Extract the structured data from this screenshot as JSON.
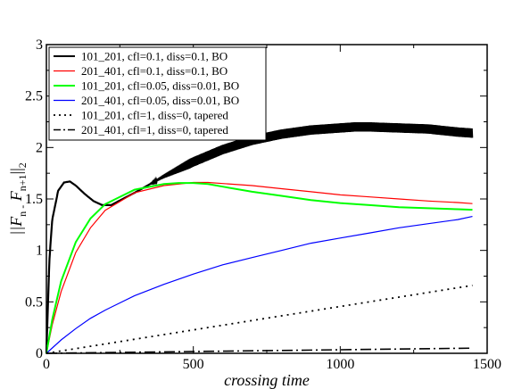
{
  "chart_data": {
    "type": "line",
    "xlabel": "crossing time",
    "ylabel": {
      "base": "||F",
      "sub1": "n -",
      "mid": " F",
      "sub2": "n+1",
      "tail": "||",
      "sub3": "2"
    },
    "xlim": [
      0,
      1500
    ],
    "ylim": [
      0,
      3
    ],
    "xticks": [
      "0",
      "500",
      "1000",
      "1500"
    ],
    "yticks": [
      "0",
      "0.5",
      "1",
      "1.5",
      "2",
      "2.5",
      "3"
    ],
    "grid": false,
    "legend_position": "top-left",
    "series": [
      {
        "name": "101_201, cfl=0.1, diss=0.1, BO",
        "color": "#000000",
        "dash": "solid",
        "width": 2.2,
        "oscillating": true,
        "x": [
          0,
          10,
          20,
          40,
          60,
          80,
          100,
          130,
          160,
          190,
          220,
          260,
          300,
          400,
          500,
          600,
          700,
          800,
          900,
          1000,
          1050,
          1100,
          1200,
          1300,
          1400,
          1450
        ],
        "y": [
          0,
          0.9,
          1.3,
          1.58,
          1.66,
          1.67,
          1.63,
          1.55,
          1.48,
          1.44,
          1.44,
          1.5,
          1.56,
          1.72,
          1.86,
          1.98,
          2.07,
          2.13,
          2.17,
          2.19,
          2.2,
          2.2,
          2.19,
          2.18,
          2.15,
          2.14
        ]
      },
      {
        "name": "201_401, cfl=0.1, diss=0.1, BO",
        "color": "#ff0000",
        "dash": "solid",
        "width": 1.2,
        "oscillating": false,
        "x": [
          0,
          20,
          50,
          100,
          150,
          200,
          300,
          400,
          500,
          550,
          600,
          700,
          800,
          900,
          1000,
          1100,
          1200,
          1300,
          1400,
          1450
        ],
        "y": [
          0,
          0.28,
          0.6,
          0.98,
          1.22,
          1.39,
          1.56,
          1.63,
          1.66,
          1.66,
          1.65,
          1.63,
          1.6,
          1.57,
          1.54,
          1.52,
          1.5,
          1.48,
          1.465,
          1.455
        ]
      },
      {
        "name": "101_201, cfl=0.05, diss=0.01, BO",
        "color": "#00ff00",
        "dash": "solid",
        "width": 2.0,
        "oscillating": false,
        "x": [
          0,
          20,
          50,
          100,
          150,
          200,
          300,
          400,
          450,
          500,
          550,
          600,
          700,
          800,
          900,
          1000,
          1100,
          1200,
          1300,
          1400,
          1450
        ],
        "y": [
          0,
          0.33,
          0.7,
          1.08,
          1.31,
          1.45,
          1.59,
          1.645,
          1.655,
          1.655,
          1.645,
          1.62,
          1.57,
          1.53,
          1.49,
          1.46,
          1.44,
          1.42,
          1.41,
          1.4,
          1.395
        ]
      },
      {
        "name": "201_401, cfl=0.05, diss=0.01, BO",
        "color": "#0000ff",
        "dash": "solid",
        "width": 1.2,
        "oscillating": false,
        "x": [
          0,
          50,
          100,
          150,
          200,
          300,
          400,
          500,
          600,
          700,
          800,
          900,
          1000,
          1100,
          1200,
          1300,
          1400,
          1450
        ],
        "y": [
          0,
          0.13,
          0.24,
          0.34,
          0.42,
          0.56,
          0.67,
          0.77,
          0.86,
          0.93,
          1.0,
          1.07,
          1.12,
          1.17,
          1.22,
          1.26,
          1.3,
          1.33
        ]
      },
      {
        "name": "101_201, cfl=1, diss=0, tapered",
        "color": "#000000",
        "dash": "dotted",
        "width": 1.8,
        "oscillating": false,
        "x": [
          0,
          1450
        ],
        "y": [
          0,
          0.66
        ]
      },
      {
        "name": "201_401, cfl=1, diss=0, tapered",
        "color": "#000000",
        "dash": "dashdot",
        "width": 1.6,
        "oscillating": false,
        "x": [
          0,
          1450
        ],
        "y": [
          0,
          0.05
        ]
      }
    ]
  }
}
